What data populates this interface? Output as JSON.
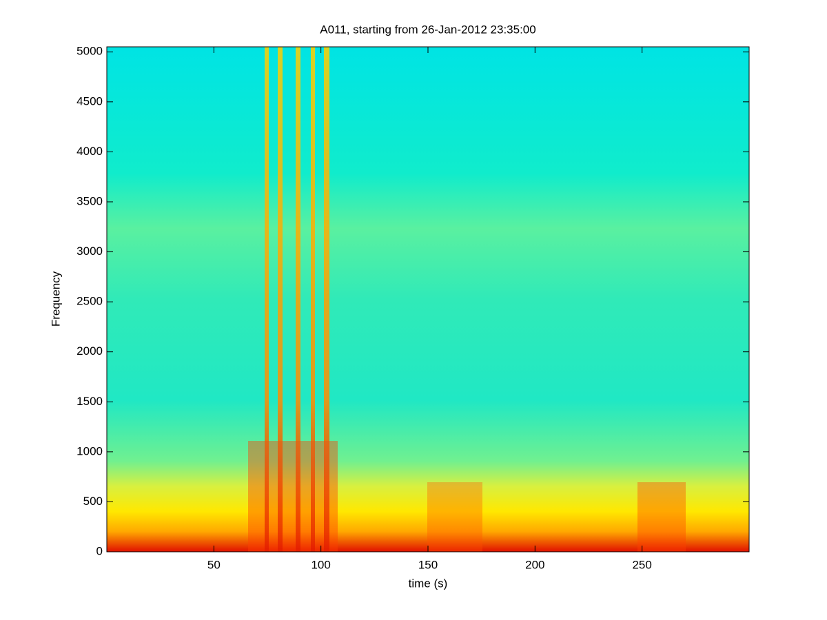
{
  "chart_data": {
    "type": "spectrogram",
    "title": "A011, starting from 26-Jan-2012 23:35:00",
    "x_label": "time (s)",
    "y_label": "Frequency",
    "xlim": [
      0,
      300
    ],
    "xticks": [
      50,
      100,
      150,
      200,
      250
    ],
    "ylim": [
      0,
      5050
    ],
    "yticks": [
      0,
      500,
      1000,
      1500,
      2000,
      2500,
      3000,
      3500,
      4000,
      4500,
      5000
    ],
    "colormap": "jet"
  }
}
